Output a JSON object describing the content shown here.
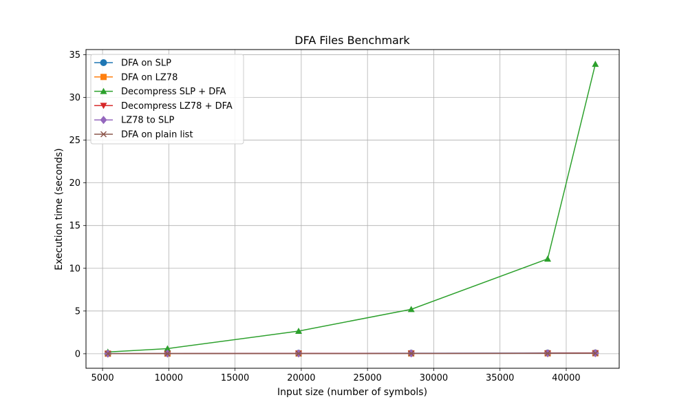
{
  "chart_data": {
    "type": "line",
    "title": "DFA Files Benchmark",
    "xlabel": "Input size (number of symbols)",
    "ylabel": "Execution time (seconds)",
    "xlim": [
      3750,
      44000
    ],
    "ylim": [
      -1.7,
      35.6
    ],
    "xticks": [
      5000,
      10000,
      15000,
      20000,
      25000,
      30000,
      35000,
      40000
    ],
    "yticks": [
      0,
      5,
      10,
      15,
      20,
      25,
      30,
      35
    ],
    "grid": true,
    "legend_position": "upper-left",
    "x": [
      5400,
      9900,
      19800,
      28300,
      38600,
      42200
    ],
    "series": [
      {
        "name": "DFA on SLP",
        "color": "#1f77b4",
        "marker": "circle",
        "values": [
          0.02,
          0.03,
          0.05,
          0.06,
          0.08,
          0.09
        ]
      },
      {
        "name": "DFA on LZ78",
        "color": "#ff7f0e",
        "marker": "square",
        "values": [
          0.01,
          0.02,
          0.03,
          0.04,
          0.05,
          0.06
        ]
      },
      {
        "name": "Decompress SLP + DFA",
        "color": "#2ca02c",
        "marker": "triangle-up",
        "values": [
          0.2,
          0.6,
          2.65,
          5.2,
          11.1,
          33.9
        ]
      },
      {
        "name": "Decompress LZ78 + DFA",
        "color": "#d62728",
        "marker": "triangle-down",
        "values": [
          0.01,
          0.02,
          0.04,
          0.05,
          0.07,
          0.08
        ]
      },
      {
        "name": "LZ78 to SLP",
        "color": "#9467bd",
        "marker": "diamond",
        "values": [
          0.01,
          0.02,
          0.03,
          0.04,
          0.05,
          0.06
        ]
      },
      {
        "name": "DFA on plain list",
        "color": "#8c564b",
        "marker": "x",
        "values": [
          0.01,
          0.01,
          0.02,
          0.03,
          0.04,
          0.05
        ]
      }
    ]
  }
}
